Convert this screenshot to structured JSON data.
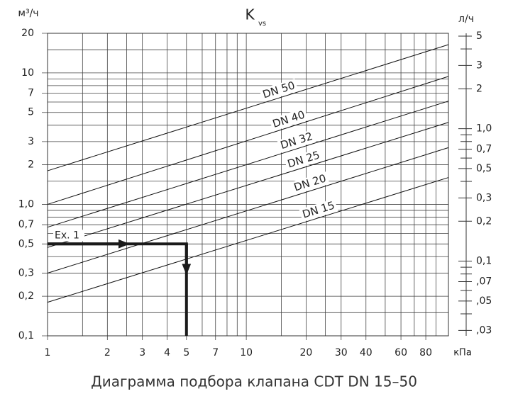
{
  "chart_data": {
    "type": "nomogram",
    "title": "K",
    "title_sub": "vs",
    "caption": "Диаграмма подбора клапана CDT DN 15–50",
    "y_label": "м³/ч",
    "y2_label": "л/ч",
    "x_label": "кПа",
    "log_x": true,
    "log_y": true,
    "xlim": [
      1,
      104
    ],
    "xticks": [
      1,
      2,
      3,
      4,
      5,
      7,
      10,
      20,
      30,
      40,
      60,
      80
    ],
    "xgrid_minor": [
      1.5,
      2.5,
      6,
      8,
      9,
      15,
      25,
      50,
      70,
      90
    ],
    "ylim": [
      0.1,
      20
    ],
    "yticks": [
      {
        "value": 0.1,
        "label": "0,1"
      },
      {
        "value": 0.2,
        "label": "0,2"
      },
      {
        "value": 0.3,
        "label": "0,3"
      },
      {
        "value": 0.5,
        "label": "0,5"
      },
      {
        "value": 0.7,
        "label": "0,7"
      },
      {
        "value": 1,
        "label": "1,0"
      },
      2,
      3,
      5,
      7,
      10,
      20
    ],
    "ygrid_minor": [
      0.15,
      0.4,
      0.6,
      0.8,
      0.9,
      1.5,
      4,
      6,
      8,
      9,
      15
    ],
    "y2lim": [
      0.0273,
      5.25
    ],
    "y2ticks": [
      {
        "value": 0.03,
        "label": ",03"
      },
      {
        "value": 0.05,
        "label": ",05"
      },
      {
        "value": 0.07,
        "label": ",07"
      },
      {
        "value": 0.1,
        "label": "0,1"
      },
      {
        "value": 0.2,
        "label": "0,2"
      },
      {
        "value": 0.3,
        "label": "0,3"
      },
      {
        "value": 0.5,
        "label": "0,5"
      },
      {
        "value": 0.7,
        "label": "0,7"
      },
      {
        "value": 1,
        "label": "1,0"
      },
      2,
      3,
      5
    ],
    "y2ticks_minor": [
      0.04,
      0.06,
      0.08,
      0.09,
      0.4,
      0.6,
      0.8,
      0.9,
      4
    ],
    "grid": true,
    "color": "#111111",
    "x": [
      1,
      104
    ],
    "series": [
      {
        "name": "DN 50",
        "values": [
          1.8,
          16.4
        ]
      },
      {
        "name": "DN 40",
        "values": [
          1.0,
          9.4
        ]
      },
      {
        "name": "DN 32",
        "values": [
          0.67,
          6.1
        ]
      },
      {
        "name": "DN 25",
        "values": [
          0.47,
          4.2
        ]
      },
      {
        "name": "DN 20",
        "values": [
          0.3,
          2.7
        ]
      },
      {
        "name": "DN 15",
        "values": [
          0.18,
          1.6
        ]
      }
    ],
    "example": {
      "label": "Ex. 1",
      "flow": 0.5,
      "pressure": 5
    }
  }
}
